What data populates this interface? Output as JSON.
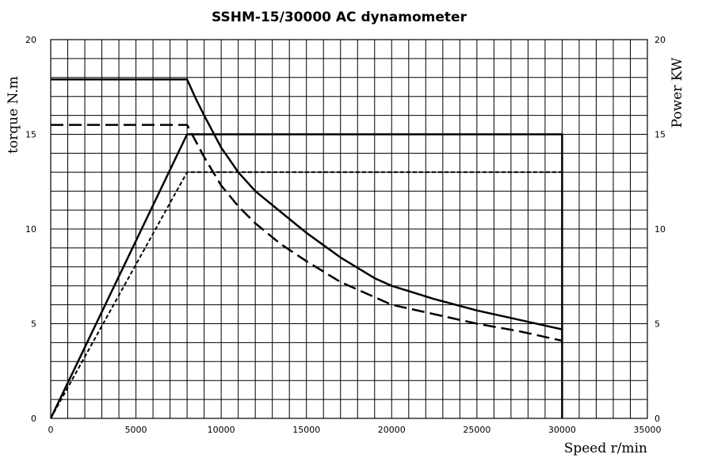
{
  "chart_data": {
    "type": "line",
    "title": "SSHM-15/30000 AC dynamometer",
    "xlabel": "Speed r/min",
    "ylabel": "torque N.m",
    "y2label": "Power KW",
    "xlim": [
      0,
      35000
    ],
    "ylim": [
      0,
      20
    ],
    "y2lim": [
      0,
      20
    ],
    "x_ticks": [
      "0",
      "5000",
      "10000",
      "15000",
      "20000",
      "25000",
      "30000",
      "35000"
    ],
    "y_ticks": [
      "0",
      "5",
      "10",
      "15",
      "20"
    ],
    "y2_ticks": [
      "0",
      "5",
      "10",
      "15",
      "20"
    ],
    "grid": true,
    "series": [
      {
        "style": "solid",
        "axis": "left",
        "x": [
          0,
          8000,
          8500,
          9000,
          10000,
          11000,
          12000,
          13500,
          15000,
          17000,
          19000,
          20000,
          22500,
          25000,
          27500,
          30000
        ],
        "y": [
          17.9,
          17.9,
          16.9,
          16.0,
          14.3,
          13.0,
          12.0,
          10.9,
          9.8,
          8.5,
          7.4,
          7.0,
          6.3,
          5.7,
          5.2,
          4.7
        ]
      },
      {
        "style": "dashed",
        "axis": "left",
        "x": [
          0,
          8000,
          9000,
          10000,
          11000,
          12000,
          13500,
          15000,
          17000,
          19000,
          20000,
          22500,
          25000,
          27500,
          30000
        ],
        "y": [
          15.5,
          15.5,
          13.8,
          12.3,
          11.2,
          10.3,
          9.2,
          8.3,
          7.2,
          6.4,
          6.0,
          5.5,
          5.0,
          4.6,
          4.1
        ]
      },
      {
        "style": "solid",
        "axis": "right",
        "x": [
          0,
          8000,
          30000,
          30000
        ],
        "y": [
          0,
          15,
          15,
          0
        ]
      },
      {
        "style": "dotted",
        "axis": "right",
        "x": [
          0,
          8000,
          30000
        ],
        "y": [
          0,
          13,
          13
        ]
      }
    ]
  }
}
